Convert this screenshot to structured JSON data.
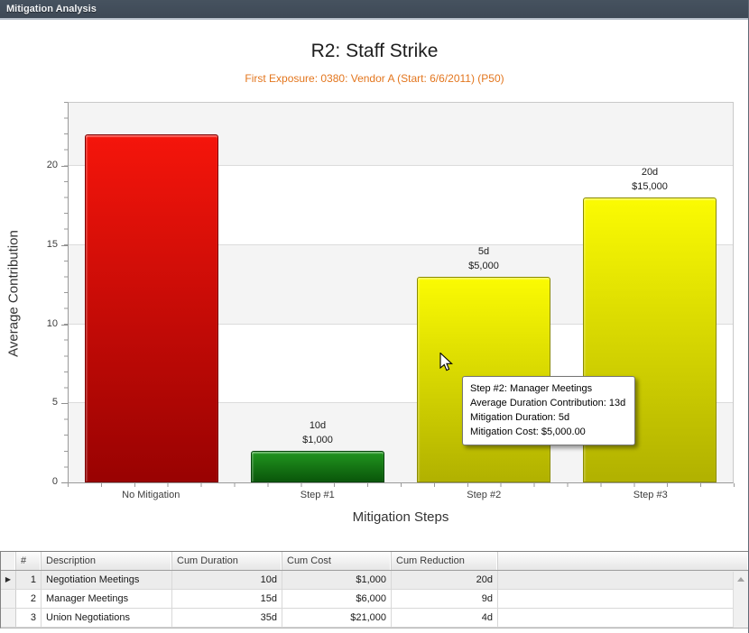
{
  "window": {
    "title": "Mitigation Analysis"
  },
  "chart": {
    "title": "R2: Staff Strike",
    "subtitle": "First Exposure: 0380: Vendor A (Start: 6/6/2011) (P50)",
    "xlabel": "Mitigation Steps",
    "ylabel": "Average Contribution"
  },
  "chart_data": {
    "type": "bar",
    "title": "R2: Staff Strike",
    "subtitle": "First Exposure: 0380: Vendor A (Start: 6/6/2011) (P50)",
    "xlabel": "Mitigation Steps",
    "ylabel": "Average Contribution",
    "categories": [
      "No Mitigation",
      "Step #1",
      "Step #2",
      "Step #3"
    ],
    "values": [
      22,
      2,
      13,
      18
    ],
    "bar_labels": [
      [],
      [
        "10d",
        "$1,000"
      ],
      [
        "5d",
        "$5,000"
      ],
      [
        "20d",
        "$15,000"
      ]
    ],
    "bar_styles": [
      {
        "top": "#f5150b",
        "bottom": "#990202",
        "border": "#7c0000"
      },
      {
        "top": "#21961f",
        "bottom": "#0a560a",
        "border": "#06430a"
      },
      {
        "top": "#fbfb02",
        "bottom": "#b1b100",
        "border": "#8a8a00"
      },
      {
        "top": "#fbfb02",
        "bottom": "#b1b100",
        "border": "#8a8a00"
      }
    ],
    "ylim": [
      0,
      24
    ],
    "yticks": [
      0,
      5,
      10,
      15,
      20
    ],
    "grid": "horizontal bands every 5 units, gridlines at yticks",
    "legend": "none"
  },
  "tooltip": {
    "lines": [
      "Step #2: Manager Meetings",
      "Average Duration Contribution: 13d",
      "Mitigation Duration: 5d",
      "Mitigation Cost: $5,000.00"
    ]
  },
  "table": {
    "columns": [
      "#",
      "Description",
      "Cum Duration",
      "Cum Cost",
      "Cum Reduction"
    ],
    "rows": [
      [
        "1",
        "Negotiation Meetings",
        "10d",
        "$1,000",
        "20d"
      ],
      [
        "2",
        "Manager Meetings",
        "15d",
        "$6,000",
        "9d"
      ],
      [
        "3",
        "Union Negotiations",
        "35d",
        "$21,000",
        "4d"
      ]
    ],
    "selected_row_index": 0
  },
  "colors": {
    "titlebar_bg": "#3e4956",
    "chart_title_text": "#1d1d1d",
    "subtitle_text": "#e3761e",
    "band_gray": "#f4f4f4",
    "selected_row_bg": "#ececec"
  }
}
